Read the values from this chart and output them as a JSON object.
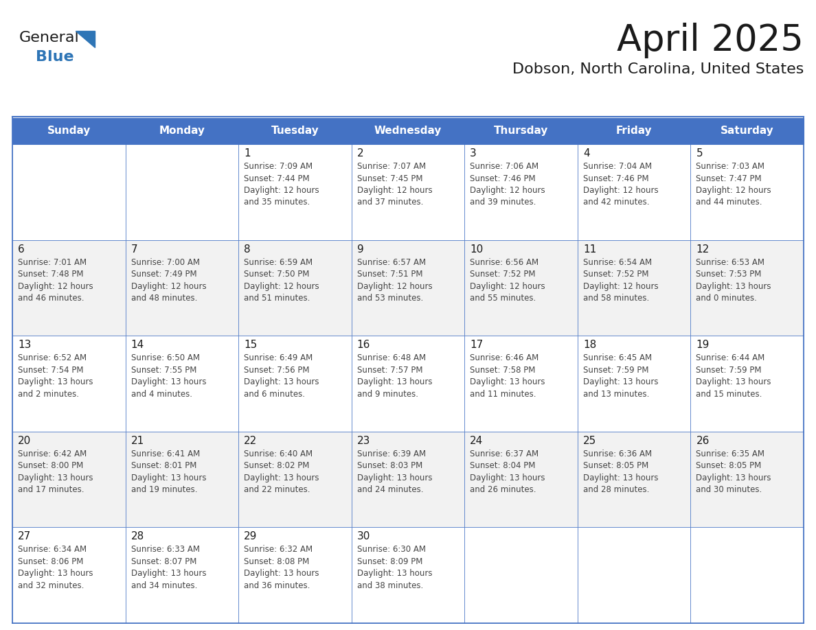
{
  "title": "April 2025",
  "subtitle": "Dobson, North Carolina, United States",
  "header_bg": "#4472C4",
  "header_text_color": "#FFFFFF",
  "cell_bg_white": "#FFFFFF",
  "cell_bg_gray": "#F2F2F2",
  "border_color": "#4472C4",
  "separator_color": "#4472C4",
  "day_names": [
    "Sunday",
    "Monday",
    "Tuesday",
    "Wednesday",
    "Thursday",
    "Friday",
    "Saturday"
  ],
  "title_color": "#1a1a1a",
  "subtitle_color": "#1a1a1a",
  "day_number_color": "#1a1a1a",
  "cell_text_color": "#444444",
  "logo_general_color": "#1a1a1a",
  "logo_blue_color": "#2E75B6",
  "weeks": [
    [
      {
        "day": "",
        "text": ""
      },
      {
        "day": "",
        "text": ""
      },
      {
        "day": "1",
        "text": "Sunrise: 7:09 AM\nSunset: 7:44 PM\nDaylight: 12 hours\nand 35 minutes."
      },
      {
        "day": "2",
        "text": "Sunrise: 7:07 AM\nSunset: 7:45 PM\nDaylight: 12 hours\nand 37 minutes."
      },
      {
        "day": "3",
        "text": "Sunrise: 7:06 AM\nSunset: 7:46 PM\nDaylight: 12 hours\nand 39 minutes."
      },
      {
        "day": "4",
        "text": "Sunrise: 7:04 AM\nSunset: 7:46 PM\nDaylight: 12 hours\nand 42 minutes."
      },
      {
        "day": "5",
        "text": "Sunrise: 7:03 AM\nSunset: 7:47 PM\nDaylight: 12 hours\nand 44 minutes."
      }
    ],
    [
      {
        "day": "6",
        "text": "Sunrise: 7:01 AM\nSunset: 7:48 PM\nDaylight: 12 hours\nand 46 minutes."
      },
      {
        "day": "7",
        "text": "Sunrise: 7:00 AM\nSunset: 7:49 PM\nDaylight: 12 hours\nand 48 minutes."
      },
      {
        "day": "8",
        "text": "Sunrise: 6:59 AM\nSunset: 7:50 PM\nDaylight: 12 hours\nand 51 minutes."
      },
      {
        "day": "9",
        "text": "Sunrise: 6:57 AM\nSunset: 7:51 PM\nDaylight: 12 hours\nand 53 minutes."
      },
      {
        "day": "10",
        "text": "Sunrise: 6:56 AM\nSunset: 7:52 PM\nDaylight: 12 hours\nand 55 minutes."
      },
      {
        "day": "11",
        "text": "Sunrise: 6:54 AM\nSunset: 7:52 PM\nDaylight: 12 hours\nand 58 minutes."
      },
      {
        "day": "12",
        "text": "Sunrise: 6:53 AM\nSunset: 7:53 PM\nDaylight: 13 hours\nand 0 minutes."
      }
    ],
    [
      {
        "day": "13",
        "text": "Sunrise: 6:52 AM\nSunset: 7:54 PM\nDaylight: 13 hours\nand 2 minutes."
      },
      {
        "day": "14",
        "text": "Sunrise: 6:50 AM\nSunset: 7:55 PM\nDaylight: 13 hours\nand 4 minutes."
      },
      {
        "day": "15",
        "text": "Sunrise: 6:49 AM\nSunset: 7:56 PM\nDaylight: 13 hours\nand 6 minutes."
      },
      {
        "day": "16",
        "text": "Sunrise: 6:48 AM\nSunset: 7:57 PM\nDaylight: 13 hours\nand 9 minutes."
      },
      {
        "day": "17",
        "text": "Sunrise: 6:46 AM\nSunset: 7:58 PM\nDaylight: 13 hours\nand 11 minutes."
      },
      {
        "day": "18",
        "text": "Sunrise: 6:45 AM\nSunset: 7:59 PM\nDaylight: 13 hours\nand 13 minutes."
      },
      {
        "day": "19",
        "text": "Sunrise: 6:44 AM\nSunset: 7:59 PM\nDaylight: 13 hours\nand 15 minutes."
      }
    ],
    [
      {
        "day": "20",
        "text": "Sunrise: 6:42 AM\nSunset: 8:00 PM\nDaylight: 13 hours\nand 17 minutes."
      },
      {
        "day": "21",
        "text": "Sunrise: 6:41 AM\nSunset: 8:01 PM\nDaylight: 13 hours\nand 19 minutes."
      },
      {
        "day": "22",
        "text": "Sunrise: 6:40 AM\nSunset: 8:02 PM\nDaylight: 13 hours\nand 22 minutes."
      },
      {
        "day": "23",
        "text": "Sunrise: 6:39 AM\nSunset: 8:03 PM\nDaylight: 13 hours\nand 24 minutes."
      },
      {
        "day": "24",
        "text": "Sunrise: 6:37 AM\nSunset: 8:04 PM\nDaylight: 13 hours\nand 26 minutes."
      },
      {
        "day": "25",
        "text": "Sunrise: 6:36 AM\nSunset: 8:05 PM\nDaylight: 13 hours\nand 28 minutes."
      },
      {
        "day": "26",
        "text": "Sunrise: 6:35 AM\nSunset: 8:05 PM\nDaylight: 13 hours\nand 30 minutes."
      }
    ],
    [
      {
        "day": "27",
        "text": "Sunrise: 6:34 AM\nSunset: 8:06 PM\nDaylight: 13 hours\nand 32 minutes."
      },
      {
        "day": "28",
        "text": "Sunrise: 6:33 AM\nSunset: 8:07 PM\nDaylight: 13 hours\nand 34 minutes."
      },
      {
        "day": "29",
        "text": "Sunrise: 6:32 AM\nSunset: 8:08 PM\nDaylight: 13 hours\nand 36 minutes."
      },
      {
        "day": "30",
        "text": "Sunrise: 6:30 AM\nSunset: 8:09 PM\nDaylight: 13 hours\nand 38 minutes."
      },
      {
        "day": "",
        "text": ""
      },
      {
        "day": "",
        "text": ""
      },
      {
        "day": "",
        "text": ""
      }
    ]
  ]
}
